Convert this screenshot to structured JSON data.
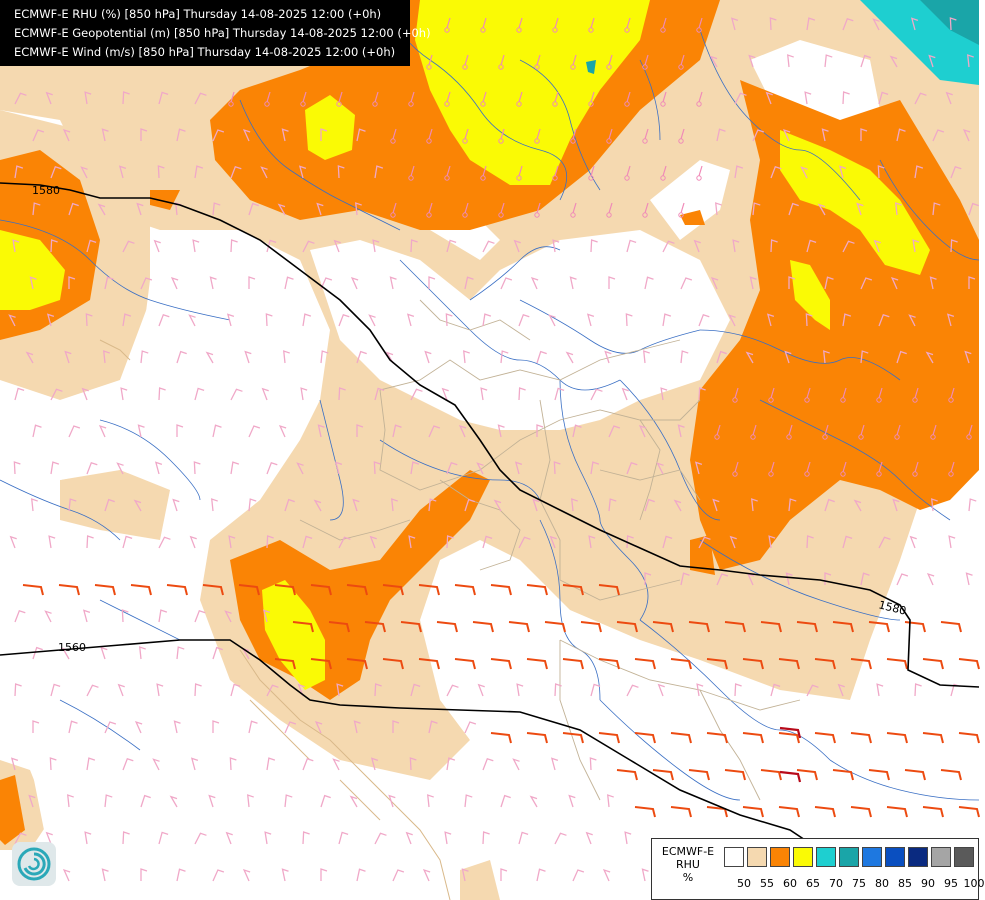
{
  "title_lines": [
    "ECMWF-E RHU (%) [850 hPa] Thursday 14-08-2025 12:00 (+0h)",
    "ECMWF-E Geopotential (m) [850 hPa] Thursday 14-08-2025 12:00 (+0h)",
    "ECMWF-E Wind (m/s) [850 hPa] Thursday 14-08-2025 12:00 (+0h)"
  ],
  "contour_labels": [
    "1580",
    "1580",
    "1560"
  ],
  "legend": {
    "title_lines": [
      "ECMWF-E",
      "RHU",
      "%"
    ],
    "ticks": [
      "50",
      "55",
      "60",
      "65",
      "70",
      "75",
      "80",
      "85",
      "90",
      "95",
      "100"
    ],
    "colors": [
      "#ffffff",
      "#f5d9b0",
      "#fa8405",
      "#fafa05",
      "#1ecfd0",
      "#1aa5a8",
      "#1e78e0",
      "#0a4fc0",
      "#0a2a80",
      "#a5a5a5",
      "#5a5a5a"
    ]
  },
  "colors": {
    "rhu_55": "#f5d9b0",
    "rhu_60": "#fa8405",
    "rhu_65": "#fafa05",
    "rhu_70": "#1ecfd0",
    "rivers": "#3a6fc4",
    "borders": "#c2b296",
    "coast": "#d9b98a",
    "wind_light": "#f0a8c8",
    "wind_mid": "#f08ab8",
    "wind_strong": "#ec4a10",
    "wind_max": "#b80a1a",
    "geopotential": "#000000"
  },
  "logo_icon": "ecmwf-swirl-icon"
}
